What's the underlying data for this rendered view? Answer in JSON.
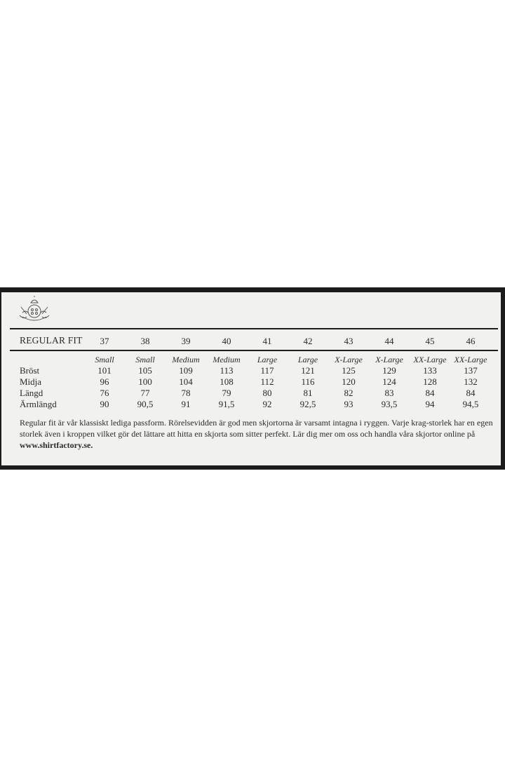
{
  "title": "REGULAR FIT",
  "logo": "crest-emblem-icon",
  "sizes": [
    "37",
    "38",
    "39",
    "40",
    "41",
    "42",
    "43",
    "44",
    "45",
    "46"
  ],
  "fits": [
    "Small",
    "Small",
    "Medium",
    "Medium",
    "Large",
    "Large",
    "X-Large",
    "X-Large",
    "XX-Large",
    "XX-Large"
  ],
  "rows": [
    {
      "label": "Bröst",
      "values": [
        "101",
        "105",
        "109",
        "113",
        "117",
        "121",
        "125",
        "129",
        "133",
        "137"
      ]
    },
    {
      "label": "Midja",
      "values": [
        "96",
        "100",
        "104",
        "108",
        "112",
        "116",
        "120",
        "124",
        "128",
        "132"
      ]
    },
    {
      "label": "Längd",
      "values": [
        "76",
        "77",
        "78",
        "79",
        "80",
        "81",
        "82",
        "83",
        "84",
        "84"
      ]
    },
    {
      "label": "Ärmlängd",
      "values": [
        "90",
        "90,5",
        "91",
        "91,5",
        "92",
        "92,5",
        "93",
        "93,5",
        "94",
        "94,5"
      ]
    }
  ],
  "description": "Regular fit är vår klassiskt lediga passform. Rörelsevidden är god men skjortorna är varsamt intagna i ryggen. Varje krag-storlek har en egen storlek även i kroppen vilket gör det lättare att hitta en skjorta som sitter perfekt. Lär dig mer om oss och handla våra skjortor online på ",
  "website": "www.shirtfactory.se."
}
